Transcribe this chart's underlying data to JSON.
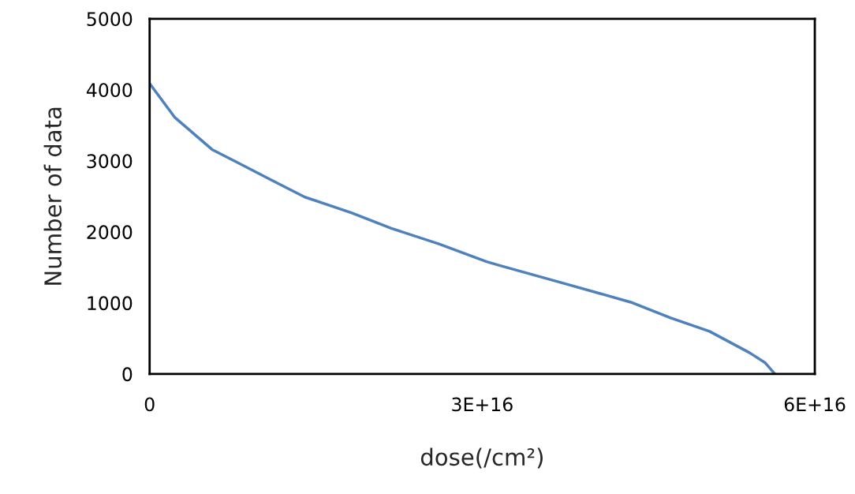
{
  "chart_data": {
    "type": "line",
    "xlabel": "dose(/cm²)",
    "ylabel": "Number of data",
    "x": [
      0,
      2280000000000000.0,
      5630000000000000.0,
      8000000000000000.0,
      1.11e+16,
      1.4e+16,
      1.82e+16,
      2.18e+16,
      2.61e+16,
      3.04e+16,
      3.15e+16,
      3.75e+16,
      4.34e+16,
      4.7e+16,
      5.05e+16,
      5.41e+16,
      5.55e+16,
      5.64e+16
    ],
    "series": [
      {
        "color": "#4f81bd",
        "values": [
          4090,
          3610,
          3160,
          2970,
          2720,
          2490,
          2270,
          2050,
          1830,
          1580,
          1530,
          1270,
          1010,
          790,
          600,
          300,
          160,
          0
        ]
      }
    ],
    "xlim": [
      0,
      6e+16
    ],
    "xticks": [
      0,
      {
        "value": 3e+16,
        "label": "3E+16"
      },
      {
        "value": 6e+16,
        "label": "6E+16"
      }
    ],
    "ylim": [
      0,
      5000
    ],
    "yticks": [
      0,
      1000,
      2000,
      3000,
      4000,
      5000
    ],
    "grid": false,
    "legend": false,
    "marker": "none",
    "line_style": "solid"
  }
}
